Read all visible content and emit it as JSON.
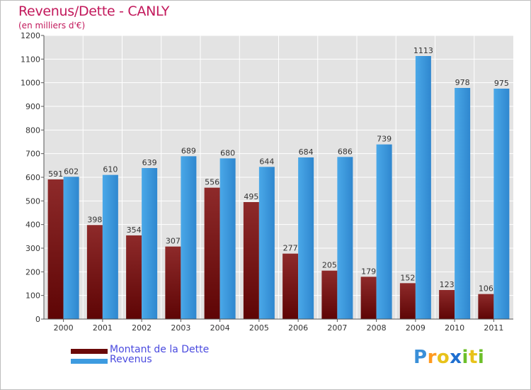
{
  "chart_data": {
    "type": "bar",
    "title": "Revenus/Dette - CANLY",
    "subtitle": "(en milliers d'€)",
    "categories": [
      "2000",
      "2001",
      "2002",
      "2003",
      "2004",
      "2005",
      "2006",
      "2007",
      "2008",
      "2009",
      "2010",
      "2011"
    ],
    "series": [
      {
        "name": "Montant de la Dette",
        "values": [
          591,
          398,
          354,
          307,
          556,
          495,
          277,
          205,
          179,
          152,
          123,
          106
        ],
        "color": "#7a0f0f"
      },
      {
        "name": "Revenus",
        "values": [
          602,
          610,
          639,
          689,
          680,
          644,
          684,
          686,
          739,
          1113,
          978,
          975
        ],
        "color": "#3d9be0"
      }
    ],
    "ylim": [
      0,
      1200
    ],
    "yticks": [
      0,
      100,
      200,
      300,
      400,
      500,
      600,
      700,
      800,
      900,
      1000,
      1100,
      1200
    ],
    "grid": true,
    "legend_position": "bottom-left"
  },
  "brand": {
    "letters": [
      "P",
      "r",
      "o",
      "x",
      "i",
      "t",
      "i"
    ],
    "colors": [
      "#3a8fd8",
      "#ff9a1f",
      "#e8c21a",
      "#1f6fd0",
      "#6cbf2a",
      "#e8c21a",
      "#6cbf2a"
    ]
  }
}
